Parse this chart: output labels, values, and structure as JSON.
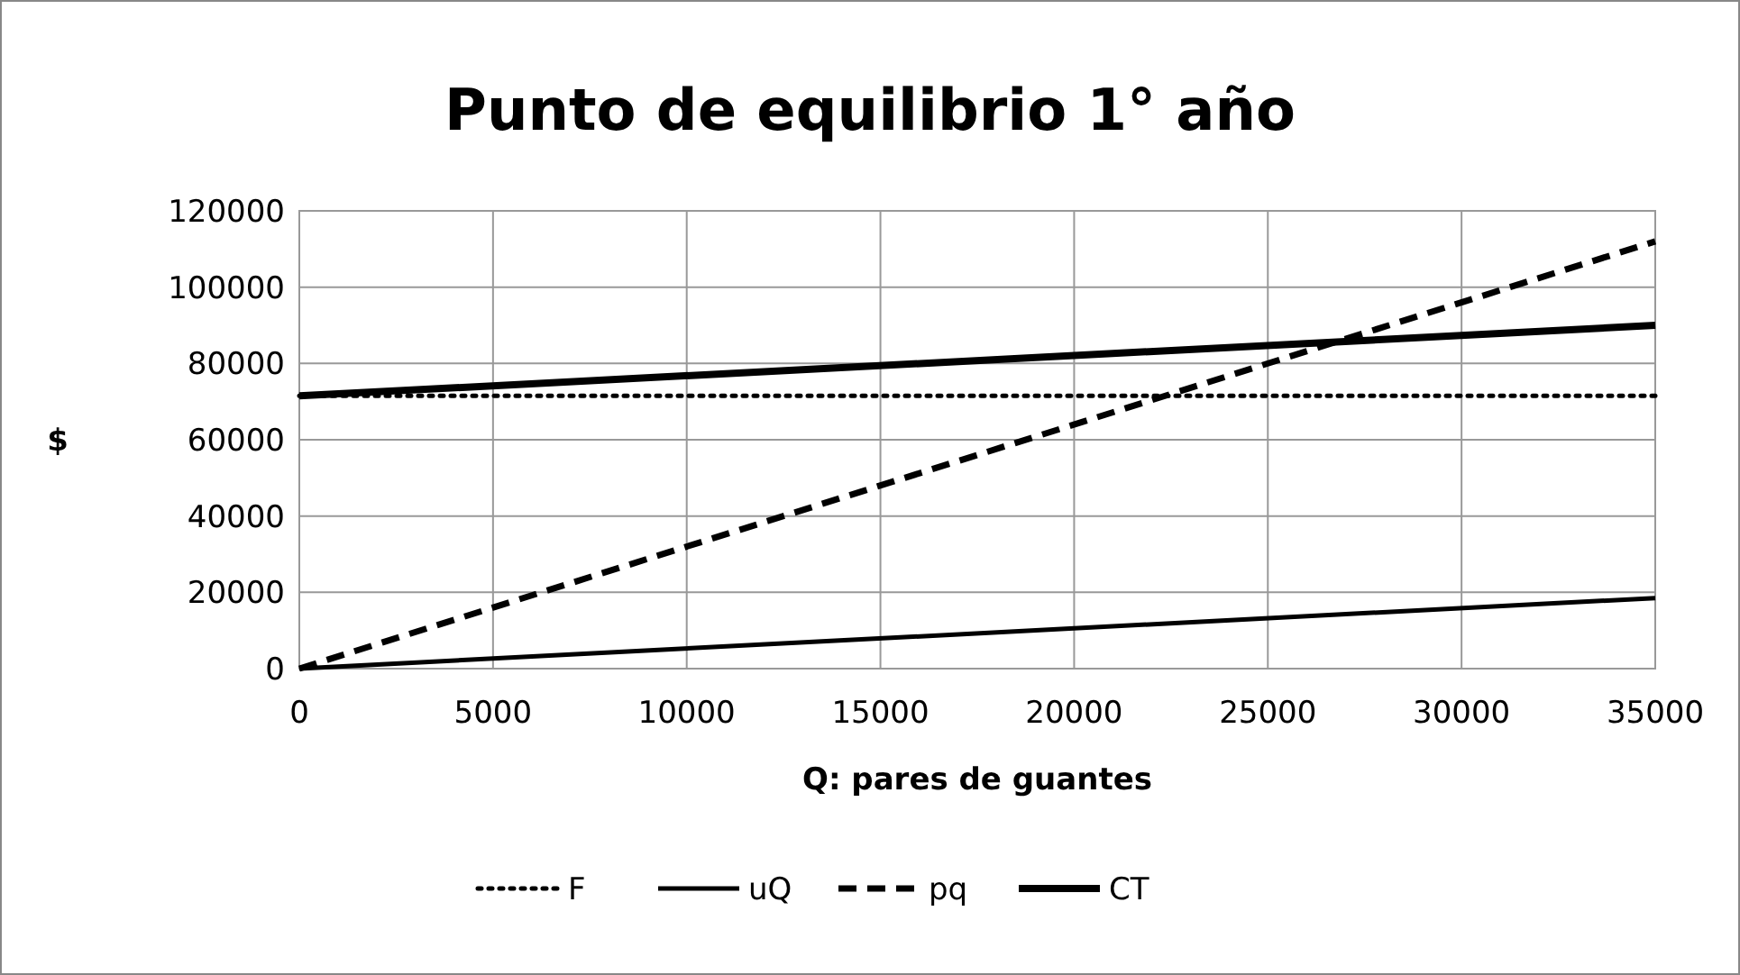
{
  "chart_data": {
    "type": "line",
    "title": "Punto de equilibrio 1° año",
    "xlabel": "Q: pares de guantes",
    "ylabel": "$",
    "xlim": [
      0,
      35000
    ],
    "xticks": [
      0,
      5000,
      10000,
      15000,
      20000,
      25000,
      30000,
      35000
    ],
    "ylim": [
      0,
      120000
    ],
    "yticks": [
      0,
      20000,
      40000,
      60000,
      80000,
      100000,
      120000
    ],
    "grid": true,
    "legend": "bottom",
    "marker": "none",
    "x": [
      0,
      35000
    ],
    "series": [
      {
        "name": "F",
        "color": "#000000",
        "line_style": "dotted",
        "values": [
          71500,
          71500
        ]
      },
      {
        "name": "uQ",
        "color": "#000000",
        "line_style": "solid",
        "values": [
          0,
          18500
        ]
      },
      {
        "name": "pq",
        "color": "#000000",
        "line_style": "dashed",
        "values": [
          0,
          112000
        ]
      },
      {
        "name": "CT",
        "color": "#000000",
        "line_style": "solid",
        "values": [
          71500,
          90000
        ]
      }
    ]
  }
}
